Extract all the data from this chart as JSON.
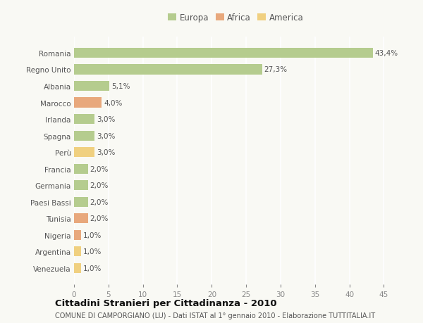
{
  "countries": [
    "Romania",
    "Regno Unito",
    "Albania",
    "Marocco",
    "Irlanda",
    "Spagna",
    "Perù",
    "Francia",
    "Germania",
    "Paesi Bassi",
    "Tunisia",
    "Nigeria",
    "Argentina",
    "Venezuela"
  ],
  "values": [
    43.4,
    27.3,
    5.1,
    4.0,
    3.0,
    3.0,
    3.0,
    2.0,
    2.0,
    2.0,
    2.0,
    1.0,
    1.0,
    1.0
  ],
  "labels": [
    "43,4%",
    "27,3%",
    "5,1%",
    "4,0%",
    "3,0%",
    "3,0%",
    "3,0%",
    "2,0%",
    "2,0%",
    "2,0%",
    "2,0%",
    "1,0%",
    "1,0%",
    "1,0%"
  ],
  "continents": [
    "Europa",
    "Europa",
    "Europa",
    "Africa",
    "Europa",
    "Europa",
    "America",
    "Europa",
    "Europa",
    "Europa",
    "Africa",
    "Africa",
    "America",
    "America"
  ],
  "colors": {
    "Europa": "#b5cc8e",
    "Africa": "#e8a87c",
    "America": "#f0d080"
  },
  "xlim": [
    0,
    47
  ],
  "xticks": [
    0,
    5,
    10,
    15,
    20,
    25,
    30,
    35,
    40,
    45
  ],
  "title": "Cittadini Stranieri per Cittadinanza - 2010",
  "subtitle": "COMUNE DI CAMPORGIANO (LU) - Dati ISTAT al 1° gennaio 2010 - Elaborazione TUTTITALIA.IT",
  "background_color": "#f9f9f4",
  "grid_color": "#ffffff",
  "bar_height": 0.6,
  "label_fontsize": 7.5,
  "tick_fontsize": 7.5,
  "title_fontsize": 9.5,
  "subtitle_fontsize": 7.0,
  "legend_fontsize": 8.5
}
